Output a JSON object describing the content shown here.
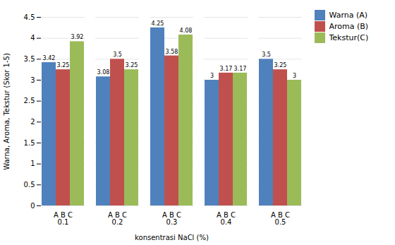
{
  "chart_data": {
    "type": "bar",
    "xlabel": "konsentrasi NaCl (%)",
    "ylabel": "Warna, Aroma, Tekstur (Skor 1-5)",
    "categories": [
      "A B C\n0.1",
      "A B C\n0.2",
      "A B C\n0.3",
      "A B C\n0.4",
      "A B C\n0.5"
    ],
    "series": [
      {
        "name": "Warna (A)",
        "color": "#4F81BD",
        "values": [
          3.42,
          3.08,
          4.25,
          3.0,
          3.5
        ]
      },
      {
        "name": "Aroma (B)",
        "color": "#C0504D",
        "values": [
          3.25,
          3.5,
          3.58,
          3.17,
          3.25
        ]
      },
      {
        "name": "Tekstur(C)",
        "color": "#9BBB59",
        "values": [
          3.92,
          3.25,
          4.08,
          3.17,
          3.0
        ]
      }
    ],
    "ylim": [
      0,
      4.5
    ],
    "yticks": [
      0,
      0.5,
      1.0,
      1.5,
      2.0,
      2.5,
      3.0,
      3.5,
      4.0,
      4.5
    ],
    "grid": true,
    "legend": "right",
    "data_labels": true
  }
}
